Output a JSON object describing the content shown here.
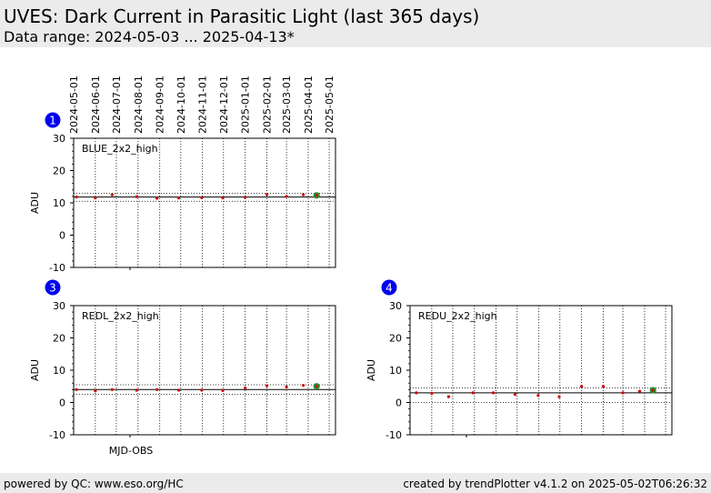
{
  "header": {
    "title": "UVES: Dark Current in Parasitic Light (last 365 days)",
    "subtitle": "Data range: 2024-05-03 ... 2025-04-13*"
  },
  "footer": {
    "left": "powered by QC: www.eso.org/HC",
    "right": "created by trendPlotter v4.1.2 on 2025-05-02T06:26:32"
  },
  "date_ticks": [
    "2024-05-01",
    "2024-06-01",
    "2024-07-01",
    "2024-08-01",
    "2024-09-01",
    "2024-10-01",
    "2024-11-01",
    "2024-12-01",
    "2025-01-01",
    "2025-02-01",
    "2025-03-01",
    "2025-04-01",
    "2025-05-01"
  ],
  "x_axis_label": "MJD-OBS",
  "colors": {
    "badge": "#0000ee",
    "point": "#cc0000",
    "latest": "#2e8b2e"
  },
  "chart_data": [
    {
      "type": "scatter",
      "badge": "1",
      "label": "BLUE_2x2_high",
      "ylabel": "ADU",
      "ylim": [
        -10,
        30
      ],
      "yticks": [
        -10,
        0,
        10,
        20,
        30
      ],
      "xlim": [
        "2024-05-01",
        "2025-05-10"
      ],
      "mean": 11.8,
      "band": [
        10.5,
        13.0
      ],
      "x": [
        "2024-05-05",
        "2024-06-01",
        "2024-06-25",
        "2024-07-30",
        "2024-08-28",
        "2024-09-28",
        "2024-10-31",
        "2024-11-30",
        "2025-01-01",
        "2025-02-01",
        "2025-03-01",
        "2025-03-25",
        "2025-04-13"
      ],
      "y": [
        11.8,
        11.5,
        12.5,
        11.9,
        11.4,
        11.5,
        11.6,
        11.5,
        11.7,
        12.6,
        12.0,
        12.5,
        12.3
      ],
      "latest": {
        "x": "2025-04-13",
        "y": 12.3
      }
    },
    {
      "type": "scatter",
      "badge": "3",
      "label": "REDL_2x2_high",
      "ylabel": "ADU",
      "ylim": [
        -10,
        30
      ],
      "yticks": [
        -10,
        0,
        10,
        20,
        30
      ],
      "xlim": [
        "2024-05-01",
        "2025-05-10"
      ],
      "mean": 4.0,
      "band": [
        2.5,
        5.5
      ],
      "x": [
        "2024-05-05",
        "2024-06-01",
        "2024-06-25",
        "2024-07-30",
        "2024-08-28",
        "2024-09-28",
        "2024-10-31",
        "2024-11-30",
        "2025-01-01",
        "2025-02-01",
        "2025-03-01",
        "2025-03-25",
        "2025-04-13"
      ],
      "y": [
        4.0,
        3.6,
        4.0,
        3.8,
        4.0,
        3.8,
        3.8,
        3.7,
        4.5,
        5.2,
        4.8,
        5.3,
        5.0
      ],
      "latest": {
        "x": "2025-04-13",
        "y": 5.0
      }
    },
    {
      "type": "scatter",
      "badge": "4",
      "label": "REDU_2x2_high",
      "ylabel": "ADU",
      "ylim": [
        -10,
        30
      ],
      "yticks": [
        -10,
        0,
        10,
        20,
        30
      ],
      "xlim": [
        "2024-05-01",
        "2025-05-10"
      ],
      "mean": 3.0,
      "band": [
        0.0,
        4.5
      ],
      "x": [
        "2024-05-10",
        "2024-06-01",
        "2024-06-25",
        "2024-07-30",
        "2024-08-28",
        "2024-09-28",
        "2024-10-31",
        "2024-11-30",
        "2025-01-01",
        "2025-02-01",
        "2025-03-01",
        "2025-03-25",
        "2025-04-13"
      ],
      "y": [
        3.0,
        2.8,
        1.8,
        3.0,
        3.0,
        2.5,
        2.2,
        1.8,
        5.0,
        5.0,
        3.0,
        3.5,
        3.8
      ],
      "latest": {
        "x": "2025-04-13",
        "y": 3.8
      }
    }
  ]
}
